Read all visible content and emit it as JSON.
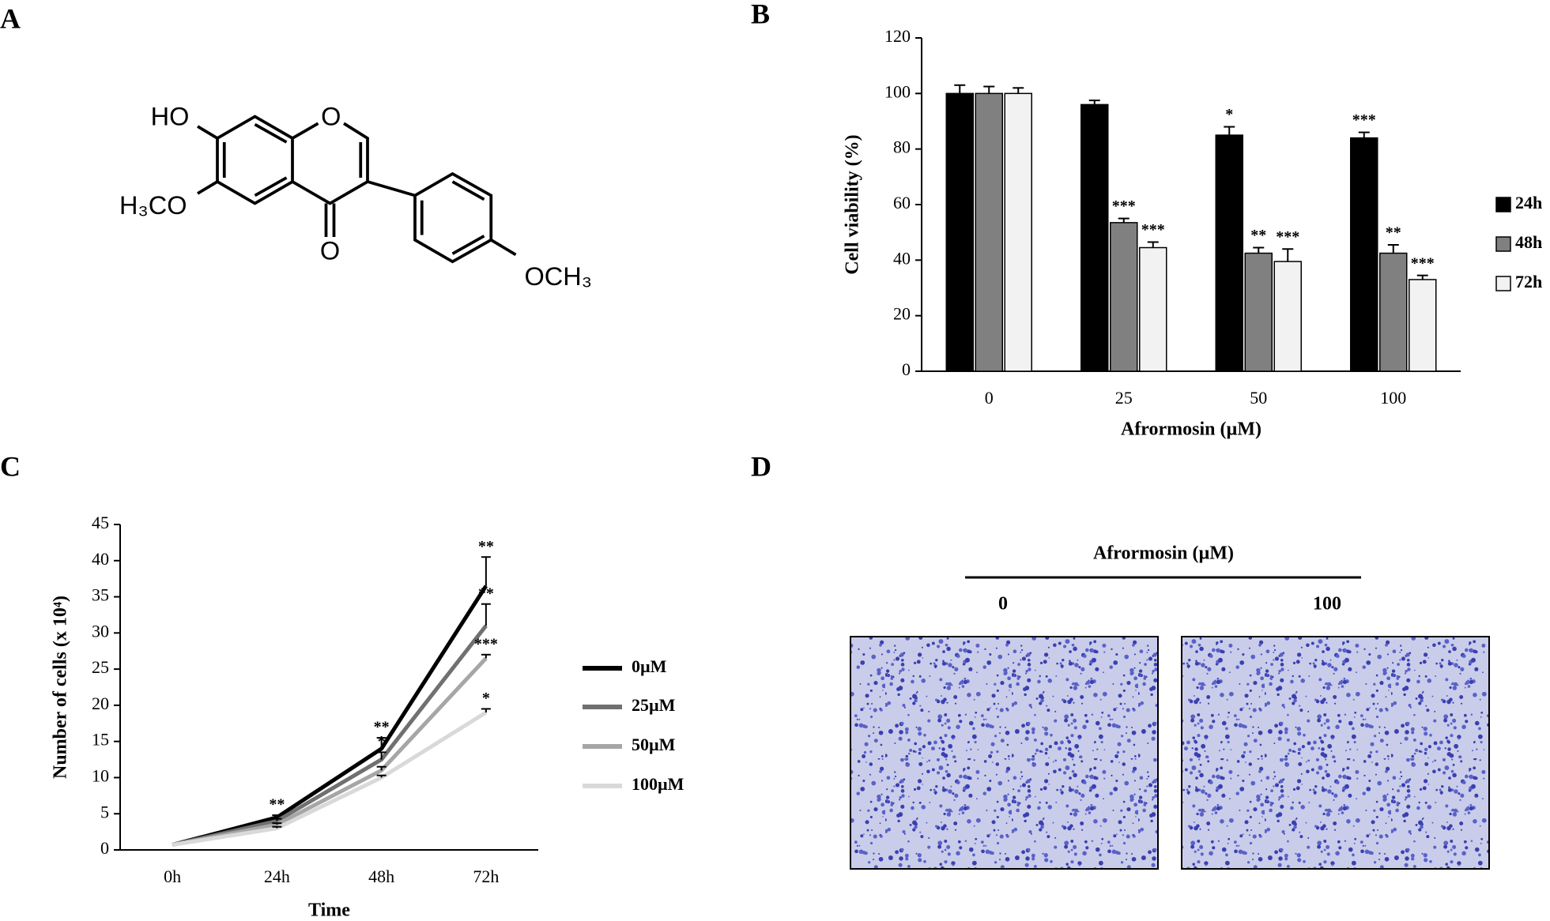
{
  "panel_labels": [
    "A",
    "B",
    "C",
    "D"
  ],
  "structure": {
    "atoms": [
      "HO",
      "O",
      "H₃CO",
      "O",
      "OCH₃"
    ]
  },
  "chart_data": [
    {
      "type": "bar",
      "categories": [
        "0",
        "25",
        "50",
        "100"
      ],
      "xlabel": "Afrormosin (µM)",
      "ylabel": "Cell viability (%)",
      "ylim": [
        0,
        120
      ],
      "yticks": [
        0,
        20,
        40,
        60,
        80,
        100,
        120
      ],
      "grid": false,
      "legend": "right",
      "series": [
        {
          "name": "24h",
          "color": "#000000",
          "values": [
            100,
            96,
            85,
            84
          ],
          "errors": [
            3,
            1.5,
            3,
            2
          ],
          "annotations": [
            null,
            null,
            "*",
            "***"
          ]
        },
        {
          "name": "48h",
          "color": "#808080",
          "values": [
            100,
            53.5,
            42.5,
            42.5
          ],
          "errors": [
            2.5,
            1.5,
            2,
            3
          ],
          "annotations": [
            null,
            "***",
            "**",
            "**"
          ]
        },
        {
          "name": "72h",
          "color": "#f2f2f2",
          "values": [
            100,
            44.5,
            39.5,
            33
          ],
          "errors": [
            2,
            2,
            4.5,
            1.5
          ],
          "annotations": [
            null,
            "***",
            "***",
            "***"
          ]
        }
      ]
    },
    {
      "type": "line",
      "categories": [
        "0h",
        "24h",
        "48h",
        "72h"
      ],
      "xlabel": "Time",
      "ylabel": "Number of cells (x 10⁴)",
      "ylim": [
        0,
        45
      ],
      "yticks": [
        0,
        5,
        10,
        15,
        20,
        25,
        30,
        35,
        40,
        45
      ],
      "grid": false,
      "legend": "right",
      "series": [
        {
          "name": "0µM",
          "color": "#000000",
          "values": [
            0.7,
            4.5,
            14,
            36.5
          ],
          "errors": [
            null,
            0.3,
            1.5,
            4
          ],
          "annotations": [
            null,
            "**",
            "**",
            "**"
          ]
        },
        {
          "name": "25µM",
          "color": "#707070",
          "values": [
            0.7,
            4,
            12.5,
            31
          ],
          "errors": [
            null,
            0.3,
            1,
            3
          ],
          "annotations": [
            null,
            null,
            "*",
            "**"
          ]
        },
        {
          "name": "50µM",
          "color": "#a6a6a6",
          "values": [
            0.7,
            3.5,
            11,
            26.5
          ],
          "errors": [
            null,
            0.2,
            0.5,
            0.5
          ],
          "annotations": [
            null,
            null,
            null,
            "***"
          ]
        },
        {
          "name": "100µM",
          "color": "#d9d9d9",
          "values": [
            0.7,
            3,
            10,
            19
          ],
          "errors": [
            null,
            0.2,
            0.3,
            0.5
          ],
          "annotations": [
            null,
            null,
            null,
            "*"
          ]
        }
      ]
    }
  ],
  "image_panel": {
    "title": "Afrormosin (µM)",
    "conditions": [
      "0",
      "100"
    ]
  }
}
